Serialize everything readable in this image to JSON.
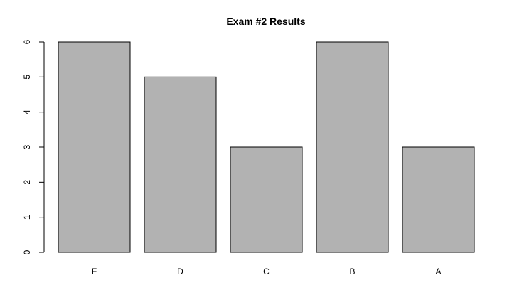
{
  "chart_data": {
    "type": "bar",
    "title": "Exam #2 Results",
    "xlabel": "",
    "ylabel": "",
    "categories": [
      "F",
      "D",
      "C",
      "B",
      "A"
    ],
    "values": [
      6,
      5,
      3,
      6,
      3
    ],
    "ylim": [
      0,
      6
    ],
    "yticks": [
      0,
      1,
      2,
      3,
      4,
      5,
      6
    ],
    "grid": false,
    "bar_color": "#b2b2b2",
    "border_color": "#000000"
  }
}
